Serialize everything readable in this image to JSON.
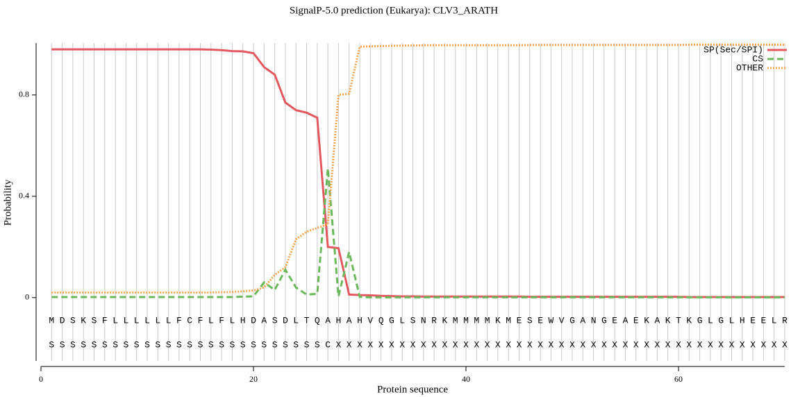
{
  "chart_data": {
    "type": "line",
    "title": "SignalP-5.0 prediction (Eukarya):  CLV3_ARATH",
    "x_label": "Protein sequence",
    "y_label": "Probability",
    "x": [
      1,
      2,
      3,
      4,
      5,
      6,
      7,
      8,
      9,
      10,
      11,
      12,
      13,
      14,
      15,
      16,
      17,
      18,
      19,
      20,
      21,
      22,
      23,
      24,
      25,
      26,
      27,
      28,
      29,
      30,
      31,
      32,
      33,
      34,
      35,
      36,
      37,
      38,
      39,
      40,
      41,
      42,
      43,
      44,
      45,
      46,
      47,
      48,
      49,
      50,
      51,
      52,
      53,
      54,
      55,
      56,
      57,
      58,
      59,
      60,
      61,
      62,
      63,
      64,
      65,
      66,
      67,
      68,
      69,
      70
    ],
    "sequence": [
      "M",
      "D",
      "S",
      "K",
      "S",
      "F",
      "L",
      "L",
      "L",
      "L",
      "L",
      "L",
      "F",
      "C",
      "F",
      "L",
      "F",
      "L",
      "H",
      "D",
      "A",
      "S",
      "D",
      "L",
      "T",
      "Q",
      "A",
      "H",
      "A",
      "H",
      "V",
      "Q",
      "G",
      "L",
      "S",
      "N",
      "R",
      "K",
      "M",
      "M",
      "M",
      "M",
      "K",
      "M",
      "E",
      "S",
      "E",
      "W",
      "V",
      "G",
      "A",
      "N",
      "G",
      "E",
      "A",
      "E",
      "K",
      "A",
      "K",
      "T",
      "K",
      "G",
      "L",
      "G",
      "L",
      "H",
      "E",
      "E",
      "L",
      "R"
    ],
    "prediction": [
      "S",
      "S",
      "S",
      "S",
      "S",
      "S",
      "S",
      "S",
      "S",
      "S",
      "S",
      "S",
      "S",
      "S",
      "S",
      "S",
      "S",
      "S",
      "S",
      "S",
      "S",
      "S",
      "S",
      "S",
      "S",
      "S",
      "C",
      "X",
      "X",
      "X",
      "X",
      "X",
      "X",
      "X",
      "X",
      "X",
      "X",
      "X",
      "X",
      "X",
      "X",
      "X",
      "X",
      "X",
      "X",
      "X",
      "X",
      "X",
      "X",
      "X",
      "X",
      "X",
      "X",
      "X",
      "X",
      "X",
      "X",
      "X",
      "X",
      "X",
      "X",
      "X",
      "X",
      "X",
      "X",
      "X",
      "X",
      "X",
      "X",
      "X"
    ],
    "series": [
      {
        "name": "SP(Sec/SPI)",
        "color": "#e3585e",
        "dash": "solid",
        "values": [
          0.98,
          0.98,
          0.98,
          0.98,
          0.98,
          0.98,
          0.98,
          0.98,
          0.98,
          0.98,
          0.98,
          0.98,
          0.98,
          0.98,
          0.98,
          0.979,
          0.977,
          0.973,
          0.972,
          0.965,
          0.91,
          0.88,
          0.77,
          0.74,
          0.73,
          0.71,
          0.2,
          0.195,
          0.012,
          0.01,
          0.009,
          0.007,
          0.006,
          0.005,
          0.005,
          0.004,
          0.004,
          0.004,
          0.004,
          0.004,
          0.004,
          0.004,
          0.004,
          0.004,
          0.004,
          0.003,
          0.003,
          0.003,
          0.003,
          0.003,
          0.003,
          0.003,
          0.003,
          0.003,
          0.003,
          0.003,
          0.003,
          0.003,
          0.003,
          0.003,
          0.002,
          0.002,
          0.002,
          0.002,
          0.002,
          0.002,
          0.002,
          0.002,
          0.002,
          0.002
        ]
      },
      {
        "name": "CS",
        "color": "#6bb85a",
        "dash": "dashed",
        "values": [
          0.002,
          0.002,
          0.002,
          0.002,
          0.002,
          0.002,
          0.002,
          0.002,
          0.002,
          0.002,
          0.002,
          0.002,
          0.002,
          0.002,
          0.002,
          0.002,
          0.002,
          0.002,
          0.004,
          0.005,
          0.06,
          0.03,
          0.11,
          0.04,
          0.012,
          0.015,
          0.51,
          0.005,
          0.18,
          0.003,
          0.001,
          0.001,
          0.001,
          0.001,
          0.001,
          0.001,
          0.001,
          0.001,
          0.001,
          0.001,
          0.001,
          0.001,
          0.001,
          0.001,
          0.001,
          0.001,
          0.001,
          0.001,
          0.001,
          0.001,
          0.001,
          0.001,
          0.001,
          0.001,
          0.001,
          0.001,
          0.001,
          0.001,
          0.001,
          0.001,
          0.001,
          0.001,
          0.001,
          0.001,
          0.001,
          0.001,
          0.001,
          0.001,
          0.001,
          0.001
        ]
      },
      {
        "name": "OTHER",
        "color": "#f5a44e",
        "dash": "dotted",
        "values": [
          0.02,
          0.02,
          0.02,
          0.02,
          0.02,
          0.02,
          0.02,
          0.02,
          0.02,
          0.02,
          0.02,
          0.02,
          0.02,
          0.02,
          0.02,
          0.02,
          0.021,
          0.022,
          0.025,
          0.028,
          0.04,
          0.09,
          0.12,
          0.23,
          0.26,
          0.275,
          0.29,
          0.8,
          0.805,
          0.99,
          0.992,
          0.993,
          0.994,
          0.995,
          0.995,
          0.996,
          0.996,
          0.996,
          0.996,
          0.996,
          0.996,
          0.996,
          0.996,
          0.996,
          0.996,
          0.997,
          0.997,
          0.997,
          0.997,
          0.997,
          0.997,
          0.997,
          0.997,
          0.997,
          0.997,
          0.997,
          0.997,
          0.997,
          0.997,
          0.997,
          0.998,
          0.998,
          0.998,
          0.998,
          0.998,
          0.998,
          0.998,
          0.998,
          0.998,
          0.998
        ]
      }
    ],
    "xlim": [
      0,
      70
    ],
    "xticks": [
      0,
      20,
      40,
      60
    ],
    "ylim": [
      -0.25,
      1.005
    ],
    "yticks": [
      0,
      0.4,
      0.8
    ],
    "grid": true,
    "legend": "upper right"
  }
}
